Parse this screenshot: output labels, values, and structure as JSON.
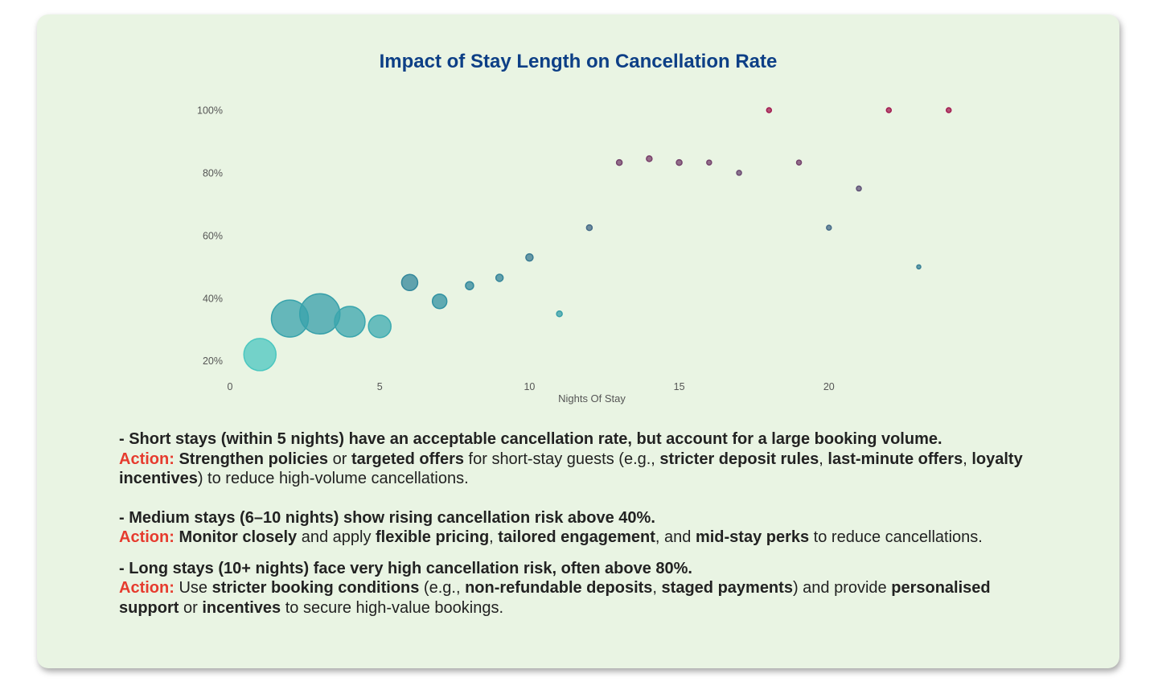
{
  "chart_data": {
    "type": "scatter",
    "title": "Impact of Stay Length on Cancellation Rate",
    "xlabel": "Nights Of Stay",
    "ylabel": "",
    "x_ticks": [
      "0",
      "5",
      "10",
      "15",
      "20"
    ],
    "y_ticks": [
      "20%",
      "40%",
      "60%",
      "80%",
      "100%"
    ],
    "xlim": [
      0,
      25
    ],
    "ylim": [
      0.13,
      1.0
    ],
    "grid": false,
    "legend": "none",
    "color_scale": [
      "#4ecdc4",
      "#2e8fa0",
      "#3f6e8a",
      "#6b4a72",
      "#a31b50"
    ],
    "points": [
      {
        "x": 1,
        "y": 0.22,
        "size": 20
      },
      {
        "x": 2,
        "y": 0.335,
        "size": 23
      },
      {
        "x": 3,
        "y": 0.35,
        "size": 25
      },
      {
        "x": 4,
        "y": 0.325,
        "size": 19
      },
      {
        "x": 5,
        "y": 0.31,
        "size": 14
      },
      {
        "x": 6,
        "y": 0.45,
        "size": 10
      },
      {
        "x": 7,
        "y": 0.39,
        "size": 9
      },
      {
        "x": 8,
        "y": 0.44,
        "size": 5
      },
      {
        "x": 9,
        "y": 0.465,
        "size": 4.5
      },
      {
        "x": 10,
        "y": 0.53,
        "size": 4.5
      },
      {
        "x": 11,
        "y": 0.35,
        "size": 3.5
      },
      {
        "x": 12,
        "y": 0.625,
        "size": 3.5
      },
      {
        "x": 13,
        "y": 0.833,
        "size": 3.5
      },
      {
        "x": 14,
        "y": 0.845,
        "size": 3.5
      },
      {
        "x": 15,
        "y": 0.833,
        "size": 3.5
      },
      {
        "x": 16,
        "y": 0.833,
        "size": 3
      },
      {
        "x": 17,
        "y": 0.8,
        "size": 3
      },
      {
        "x": 18,
        "y": 1.0,
        "size": 3
      },
      {
        "x": 19,
        "y": 0.833,
        "size": 3
      },
      {
        "x": 20,
        "y": 0.625,
        "size": 3
      },
      {
        "x": 21,
        "y": 0.75,
        "size": 3
      },
      {
        "x": 22,
        "y": 1.0,
        "size": 3
      },
      {
        "x": 23,
        "y": 0.5,
        "size": 2.5
      },
      {
        "x": 24,
        "y": 1.0,
        "size": 3
      }
    ]
  },
  "notes": {
    "short": {
      "headline": "- Short stays (within 5 nights) have an acceptable cancellation rate, but account for a large booking volume.",
      "action_label": "Action:",
      "p1": "Strengthen policies",
      "t1": " or ",
      "p2": "targeted offers",
      "t2": " for short-stay guests (e.g., ",
      "p3": "stricter deposit rules",
      "t3": ", ",
      "p4": "last-minute offers",
      "t4": ", ",
      "p5": "loyalty incentives",
      "t5": ") to reduce high-volume cancellations."
    },
    "medium": {
      "headline": "- Medium stays (6–10 nights) show rising cancellation risk above 40%.",
      "action_label": "Action:",
      "p1": "Monitor closely",
      "t1": " and apply ",
      "p2": "flexible pricing",
      "t2": ", ",
      "p3": "tailored engagement",
      "t3": ", and ",
      "p4": "mid-stay perks",
      "t4": " to reduce cancellations."
    },
    "long": {
      "headline": "- Long stays (10+ nights) face very high cancellation risk, often above 80%.",
      "action_label": "Action:",
      "t0": " Use ",
      "p1": "stricter booking conditions",
      "t1": " (e.g., ",
      "p2": "non-refundable deposits",
      "t2": ", ",
      "p3": "staged payments",
      "t3": ") and provide ",
      "p4": "personalised support",
      "t4": " or ",
      "p5": "incentives",
      "t5": " to secure high-value bookings."
    }
  }
}
